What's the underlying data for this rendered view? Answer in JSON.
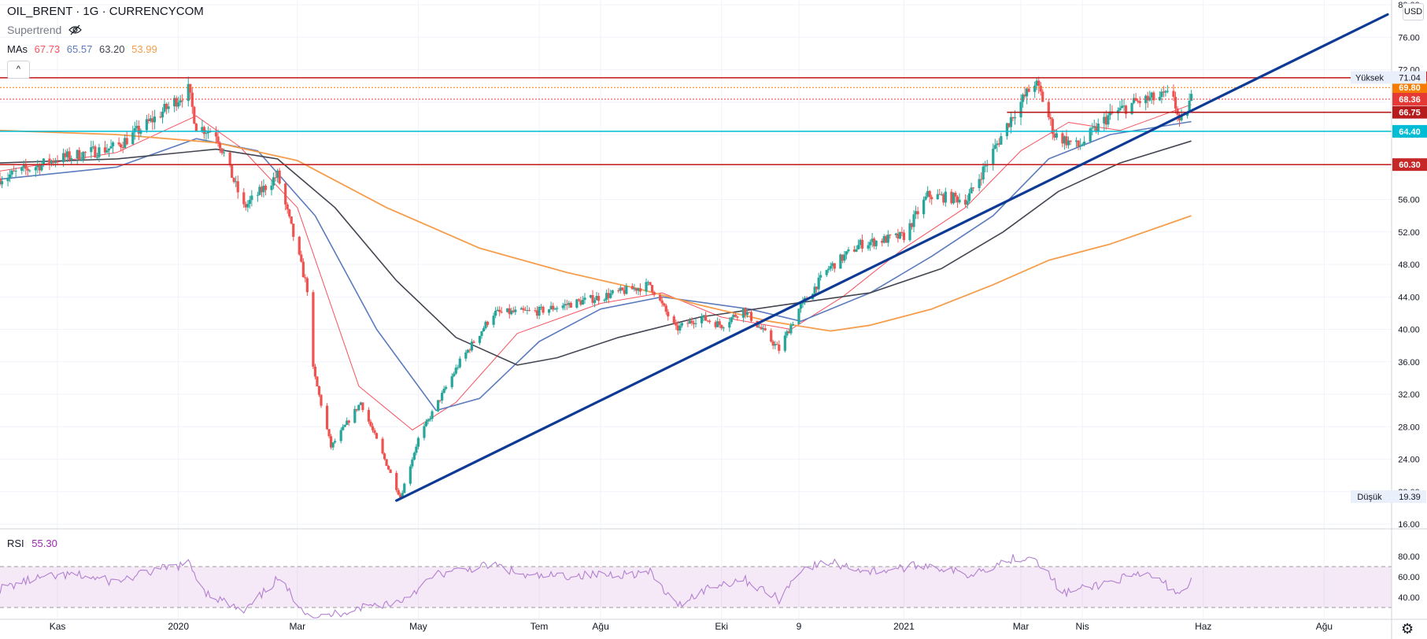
{
  "header": {
    "symbol": "OIL_BRENT · 1G · CURRENCYCOM",
    "indicator_name": "Supertrend",
    "mas_label": "MAs",
    "mas_values": [
      "67.73",
      "65.57",
      "63.20",
      "53.99"
    ],
    "collapse_label": "^",
    "currency_label": "USD"
  },
  "colors": {
    "ma1": "#f7525f",
    "ma2": "#5b7bbd",
    "ma3": "#434651",
    "ma4": "#f59d4b",
    "up": "#26a69a",
    "down": "#ef5350",
    "trendline": "#0d3a94",
    "resistance": "#c62828",
    "support": "#00bcd4",
    "rsi": "#b37fd1"
  },
  "chart_data": {
    "type": "candlestick",
    "title": "OIL_BRENT · 1G · CURRENCYCOM",
    "y_axis": {
      "ticks": [
        "80.00",
        "76.00",
        "72.00",
        "68.00",
        "64.00",
        "60.00",
        "56.00",
        "52.00",
        "48.00",
        "44.00",
        "40.00",
        "36.00",
        "32.00",
        "28.00",
        "24.00",
        "20.00",
        "16.00"
      ],
      "range": [
        16,
        80
      ]
    },
    "x_axis": {
      "labels": [
        "Kas",
        "2020",
        "Mar",
        "May",
        "Tem",
        "Ağu",
        "Eki",
        "9",
        "2021",
        "Mar",
        "Nis",
        "Haz",
        "Ağu"
      ],
      "label_dates": [
        "2019-11-01",
        "2020-01-01",
        "2020-03-01",
        "2020-05-01",
        "2020-07-01",
        "2020-08-01",
        "2020-10-01",
        "2020-11-09",
        "2021-01-01",
        "2021-03-01",
        "2021-04-01",
        "2021-06-01",
        "2021-08-01"
      ],
      "range": [
        "2019-10-03",
        "2021-09-04"
      ]
    },
    "price_path": [
      [
        "2019-10-03",
        58.6
      ],
      [
        "2019-11-01",
        61.0
      ],
      [
        "2019-12-01",
        62.5
      ],
      [
        "2019-12-20",
        66.0
      ],
      [
        "2020-01-06",
        69.5
      ],
      [
        "2020-01-10",
        65.0
      ],
      [
        "2020-01-20",
        64.2
      ],
      [
        "2020-02-03",
        55.0
      ],
      [
        "2020-02-20",
        59.0
      ],
      [
        "2020-03-06",
        45.0
      ],
      [
        "2020-03-09",
        35.0
      ],
      [
        "2020-03-18",
        25.5
      ],
      [
        "2020-04-02",
        31.0
      ],
      [
        "2020-04-22",
        19.3
      ],
      [
        "2020-05-01",
        26.5
      ],
      [
        "2020-05-22",
        36.0
      ],
      [
        "2020-06-08",
        42.0
      ],
      [
        "2020-06-30",
        42.2
      ],
      [
        "2020-08-01",
        44.0
      ],
      [
        "2020-08-26",
        45.5
      ],
      [
        "2020-09-08",
        40.0
      ],
      [
        "2020-09-20",
        41.5
      ],
      [
        "2020-10-01",
        40.5
      ],
      [
        "2020-10-12",
        42.5
      ],
      [
        "2020-10-30",
        37.5
      ],
      [
        "2020-11-09",
        42.5
      ],
      [
        "2020-11-24",
        47.5
      ],
      [
        "2020-12-10",
        50.5
      ],
      [
        "2021-01-01",
        51.5
      ],
      [
        "2021-01-13",
        56.5
      ],
      [
        "2021-02-02",
        56.0
      ],
      [
        "2021-02-25",
        66.5
      ],
      [
        "2021-03-08",
        70.5
      ],
      [
        "2021-03-11",
        69.0
      ],
      [
        "2021-03-18",
        64.0
      ],
      [
        "2021-03-30",
        62.5
      ],
      [
        "2021-04-14",
        66.2
      ],
      [
        "2021-04-28",
        68.0
      ],
      [
        "2021-05-17",
        68.9
      ],
      [
        "2021-05-20",
        65.0
      ],
      [
        "2021-05-26",
        68.4
      ]
    ],
    "high_low_marks": {
      "high": 71.04,
      "high_date": "2021-03-08",
      "low": 19.39,
      "low_date": "2020-04-22"
    },
    "moving_averages": [
      {
        "name": "MA 20",
        "value": 67.73,
        "points": [
          [
            "2019-10-03",
            59.5
          ],
          [
            "2019-12-01",
            61.8
          ],
          [
            "2020-01-10",
            66.3
          ],
          [
            "2020-02-01",
            62.5
          ],
          [
            "2020-03-01",
            55.0
          ],
          [
            "2020-04-01",
            33.0
          ],
          [
            "2020-04-28",
            27.6
          ],
          [
            "2020-05-20",
            31.0
          ],
          [
            "2020-06-20",
            39.5
          ],
          [
            "2020-08-01",
            43.2
          ],
          [
            "2020-09-01",
            44.5
          ],
          [
            "2020-10-01",
            41.5
          ],
          [
            "2020-11-05",
            40.0
          ],
          [
            "2020-12-01",
            44.0
          ],
          [
            "2021-01-01",
            50.0
          ],
          [
            "2021-02-01",
            55.0
          ],
          [
            "2021-03-01",
            62.0
          ],
          [
            "2021-03-25",
            65.5
          ],
          [
            "2021-04-20",
            64.5
          ],
          [
            "2021-05-26",
            67.7
          ]
        ]
      },
      {
        "name": "MA 50",
        "value": 65.57,
        "points": [
          [
            "2019-10-03",
            58.5
          ],
          [
            "2019-12-01",
            60.0
          ],
          [
            "2020-01-10",
            63.5
          ],
          [
            "2020-02-10",
            62.0
          ],
          [
            "2020-03-10",
            54.0
          ],
          [
            "2020-04-10",
            40.0
          ],
          [
            "2020-05-10",
            30.0
          ],
          [
            "2020-06-01",
            31.5
          ],
          [
            "2020-07-01",
            38.5
          ],
          [
            "2020-08-01",
            42.5
          ],
          [
            "2020-09-01",
            44.0
          ],
          [
            "2020-10-15",
            42.5
          ],
          [
            "2020-11-10",
            41.0
          ],
          [
            "2020-12-15",
            44.5
          ],
          [
            "2021-01-15",
            49.0
          ],
          [
            "2021-02-15",
            54.0
          ],
          [
            "2021-03-15",
            61.0
          ],
          [
            "2021-04-15",
            64.0
          ],
          [
            "2021-05-26",
            65.6
          ]
        ]
      },
      {
        "name": "MA 100",
        "value": 63.2,
        "points": [
          [
            "2019-10-03",
            60.5
          ],
          [
            "2019-12-01",
            61.0
          ],
          [
            "2020-01-20",
            62.2
          ],
          [
            "2020-02-20",
            61.0
          ],
          [
            "2020-03-20",
            55.0
          ],
          [
            "2020-04-20",
            46.0
          ],
          [
            "2020-05-20",
            39.0
          ],
          [
            "2020-06-20",
            35.6
          ],
          [
            "2020-07-10",
            36.5
          ],
          [
            "2020-08-10",
            39.0
          ],
          [
            "2020-09-20",
            41.5
          ],
          [
            "2020-11-01",
            43.0
          ],
          [
            "2020-12-15",
            44.5
          ],
          [
            "2021-01-20",
            47.5
          ],
          [
            "2021-02-20",
            52.0
          ],
          [
            "2021-03-20",
            57.0
          ],
          [
            "2021-04-20",
            60.5
          ],
          [
            "2021-05-26",
            63.2
          ]
        ]
      },
      {
        "name": "MA 200",
        "value": 53.99,
        "points": [
          [
            "2019-10-03",
            64.5
          ],
          [
            "2019-12-01",
            64.0
          ],
          [
            "2020-01-20",
            63.0
          ],
          [
            "2020-03-01",
            60.8
          ],
          [
            "2020-04-15",
            55.0
          ],
          [
            "2020-06-01",
            50.0
          ],
          [
            "2020-07-15",
            47.0
          ],
          [
            "2020-08-20",
            45.0
          ],
          [
            "2020-09-20",
            43.0
          ],
          [
            "2020-10-25",
            41.0
          ],
          [
            "2020-11-25",
            39.8
          ],
          [
            "2020-12-15",
            40.5
          ],
          [
            "2021-01-15",
            42.5
          ],
          [
            "2021-02-15",
            45.5
          ],
          [
            "2021-03-15",
            48.5
          ],
          [
            "2021-04-15",
            50.5
          ],
          [
            "2021-05-26",
            54.0
          ]
        ]
      }
    ],
    "horizontal_levels": [
      {
        "value": 71.0,
        "label": "71.00",
        "color": "#c62828",
        "style": "solid"
      },
      {
        "value": 69.8,
        "label": "69.80",
        "color": "#f57c00",
        "style": "dotted"
      },
      {
        "value": 68.36,
        "label": "68.36",
        "color": "#e53935",
        "style": "dotted"
      },
      {
        "value": 66.75,
        "label": "66.75",
        "color": "#b71c1c",
        "style": "solid",
        "from_date": "2021-02-22"
      },
      {
        "value": 64.4,
        "label": "64.40",
        "color": "#00bcd4",
        "style": "solid"
      },
      {
        "value": 60.3,
        "label": "60.30",
        "color": "#c62828",
        "style": "solid"
      }
    ],
    "trendline": {
      "from": [
        "2020-04-20",
        18.9
      ],
      "to": [
        "2021-09-02",
        78.8
      ]
    },
    "price_labels": [
      {
        "text": "Yüksek",
        "value": "71.04"
      },
      {
        "text": "Düşük",
        "value": "19.39"
      }
    ],
    "rsi": {
      "name": "RSI",
      "value": "55.30",
      "ticks": [
        "80.00",
        "60.00",
        "40.00"
      ],
      "bands": [
        70,
        30
      ],
      "range": [
        20,
        82
      ],
      "points": [
        [
          "2019-10-03",
          48
        ],
        [
          "2019-10-20",
          58
        ],
        [
          "2019-11-10",
          62
        ],
        [
          "2019-11-30",
          55
        ],
        [
          "2019-12-20",
          66
        ],
        [
          "2020-01-06",
          73
        ],
        [
          "2020-01-15",
          45
        ],
        [
          "2020-02-03",
          25
        ],
        [
          "2020-02-20",
          58
        ],
        [
          "2020-03-09",
          18
        ],
        [
          "2020-04-01",
          30
        ],
        [
          "2020-04-22",
          36
        ],
        [
          "2020-05-10",
          62
        ],
        [
          "2020-06-08",
          72
        ],
        [
          "2020-06-25",
          60
        ],
        [
          "2020-08-01",
          62
        ],
        [
          "2020-08-26",
          64
        ],
        [
          "2020-09-08",
          32
        ],
        [
          "2020-09-25",
          50
        ],
        [
          "2020-10-12",
          58
        ],
        [
          "2020-10-30",
          38
        ],
        [
          "2020-11-10",
          68
        ],
        [
          "2020-11-25",
          74
        ],
        [
          "2020-12-15",
          65
        ],
        [
          "2021-01-13",
          72
        ],
        [
          "2021-02-02",
          62
        ],
        [
          "2021-02-25",
          78
        ],
        [
          "2021-03-08",
          80
        ],
        [
          "2021-03-22",
          44
        ],
        [
          "2021-04-01",
          48
        ],
        [
          "2021-04-20",
          58
        ],
        [
          "2021-05-05",
          62
        ],
        [
          "2021-05-20",
          44
        ],
        [
          "2021-05-26",
          55.3
        ]
      ]
    },
    "grid": true
  }
}
